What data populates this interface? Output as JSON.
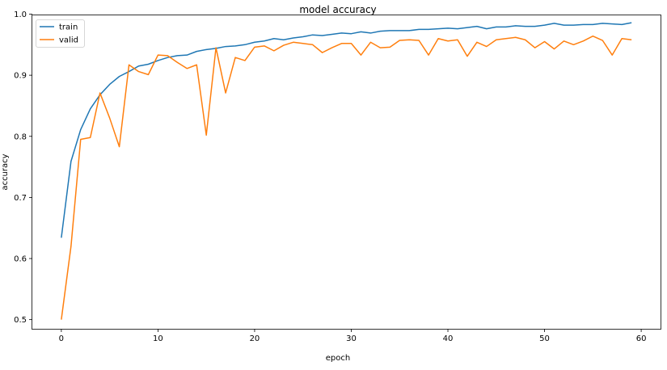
{
  "chart_data": {
    "type": "line",
    "title": "model accuracy",
    "xlabel": "epoch",
    "ylabel": "accuracy",
    "xlim": [
      -3,
      62
    ],
    "ylim": [
      0.485,
      0.998
    ],
    "xticks": [
      0,
      10,
      20,
      30,
      40,
      50,
      60
    ],
    "yticks": [
      0.5,
      0.6,
      0.7,
      0.8,
      0.9,
      1.0
    ],
    "ytick_labels": [
      "0.5",
      "0.6",
      "0.7",
      "0.8",
      "0.9",
      "1.0"
    ],
    "grid": false,
    "legend": "top-left",
    "series": [
      {
        "name": "train",
        "color": "#1f77b4",
        "x": [
          0,
          1,
          2,
          3,
          4,
          5,
          6,
          7,
          8,
          9,
          10,
          11,
          12,
          13,
          14,
          15,
          16,
          17,
          18,
          19,
          20,
          21,
          22,
          23,
          24,
          25,
          26,
          27,
          28,
          29,
          30,
          31,
          32,
          33,
          34,
          35,
          36,
          37,
          38,
          39,
          40,
          41,
          42,
          43,
          44,
          45,
          46,
          47,
          48,
          49,
          50,
          51,
          52,
          53,
          54,
          55,
          56,
          57,
          58,
          59
        ],
        "values": [
          0.634,
          0.759,
          0.811,
          0.845,
          0.868,
          0.885,
          0.898,
          0.906,
          0.915,
          0.918,
          0.924,
          0.929,
          0.932,
          0.933,
          0.939,
          0.942,
          0.944,
          0.947,
          0.948,
          0.95,
          0.954,
          0.956,
          0.96,
          0.958,
          0.961,
          0.963,
          0.966,
          0.965,
          0.967,
          0.969,
          0.968,
          0.971,
          0.969,
          0.972,
          0.973,
          0.973,
          0.973,
          0.975,
          0.975,
          0.976,
          0.977,
          0.976,
          0.978,
          0.98,
          0.976,
          0.979,
          0.979,
          0.981,
          0.98,
          0.98,
          0.982,
          0.985,
          0.982,
          0.982,
          0.983,
          0.983,
          0.985,
          0.984,
          0.983,
          0.986
        ]
      },
      {
        "name": "valid",
        "color": "#ff7f0e",
        "x": [
          0,
          1,
          2,
          3,
          4,
          5,
          6,
          7,
          8,
          9,
          10,
          11,
          12,
          13,
          14,
          15,
          16,
          17,
          18,
          19,
          20,
          21,
          22,
          23,
          24,
          25,
          26,
          27,
          28,
          29,
          30,
          31,
          32,
          33,
          34,
          35,
          36,
          37,
          38,
          39,
          40,
          41,
          42,
          43,
          44,
          45,
          46,
          47,
          48,
          49,
          50,
          51,
          52,
          53,
          54,
          55,
          56,
          57,
          58,
          59
        ],
        "values": [
          0.5,
          0.62,
          0.795,
          0.798,
          0.871,
          0.83,
          0.783,
          0.917,
          0.906,
          0.901,
          0.933,
          0.932,
          0.921,
          0.911,
          0.917,
          0.802,
          0.945,
          0.871,
          0.929,
          0.924,
          0.946,
          0.948,
          0.94,
          0.949,
          0.954,
          0.952,
          0.95,
          0.937,
          0.945,
          0.952,
          0.952,
          0.933,
          0.954,
          0.945,
          0.946,
          0.957,
          0.958,
          0.957,
          0.933,
          0.96,
          0.956,
          0.958,
          0.931,
          0.954,
          0.947,
          0.958,
          0.96,
          0.962,
          0.958,
          0.945,
          0.955,
          0.943,
          0.956,
          0.95,
          0.956,
          0.964,
          0.957,
          0.933,
          0.96,
          0.958
        ]
      }
    ]
  }
}
